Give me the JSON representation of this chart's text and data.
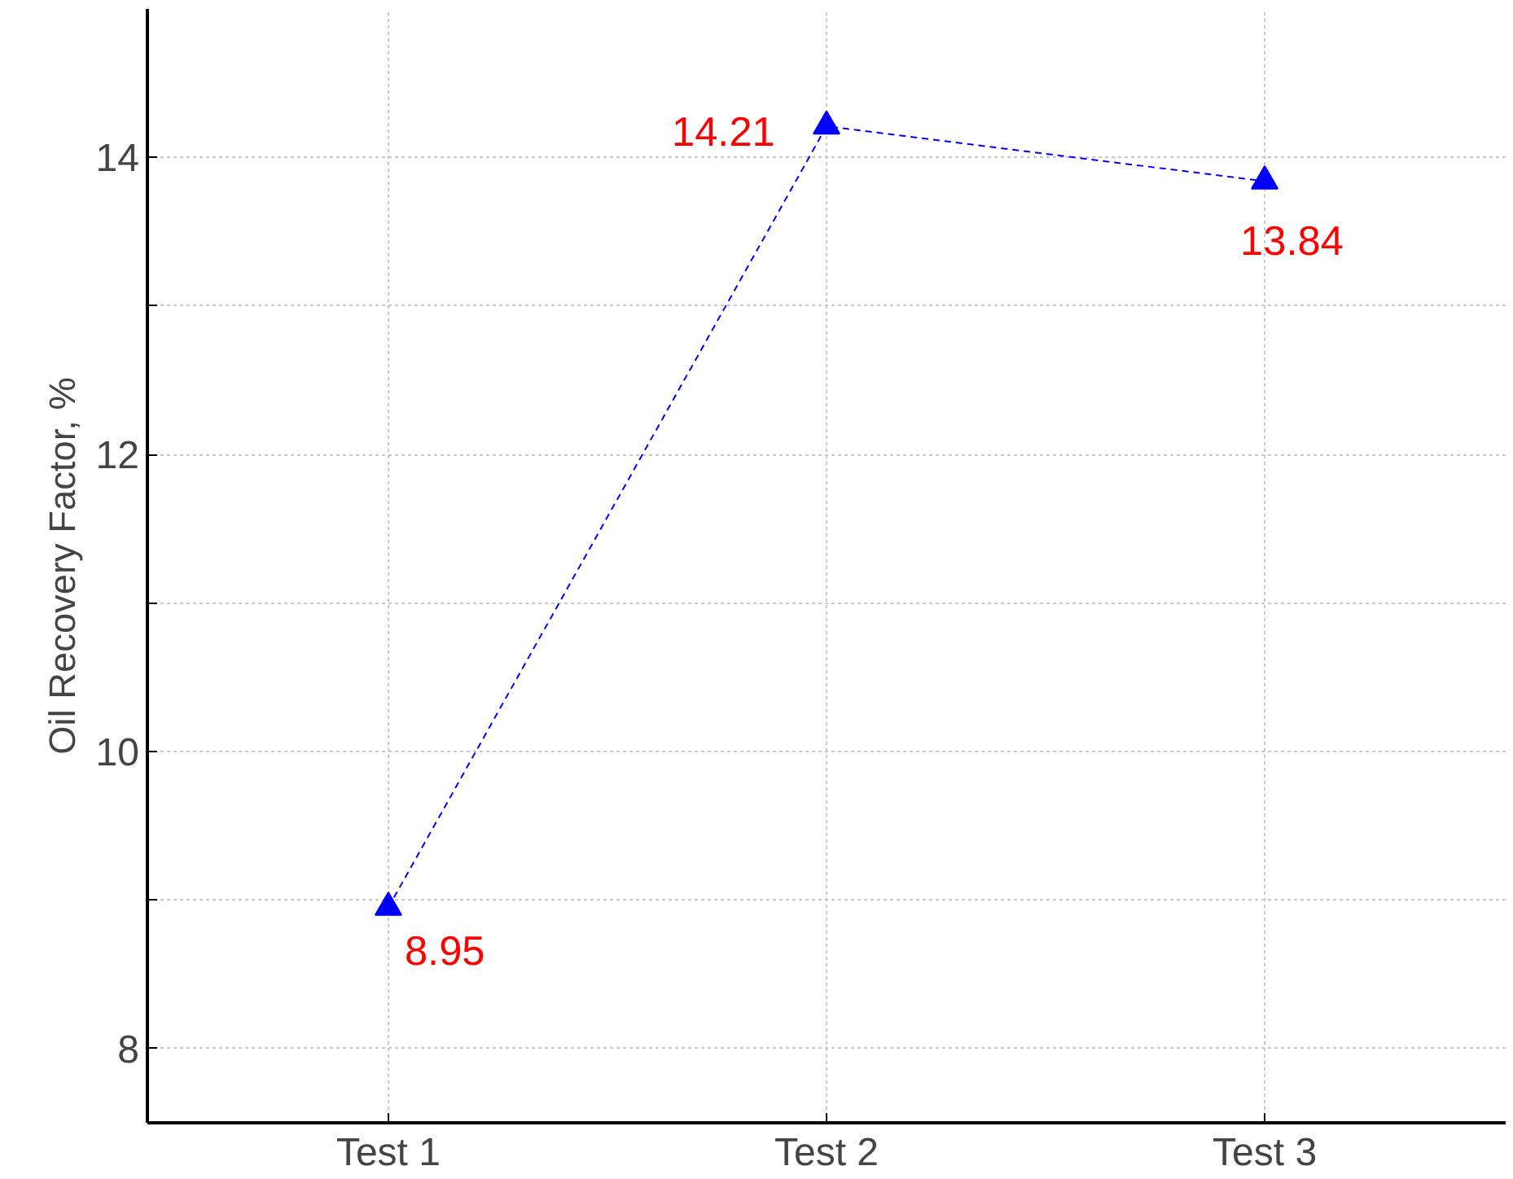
{
  "chart_data": {
    "type": "line",
    "ylabel": "Oil Recovery Factor, %",
    "categories": [
      "Test 1",
      "Test 2",
      "Test 3"
    ],
    "series": [
      {
        "color": "#0000ff",
        "values": [
          8.95,
          14.21,
          13.84
        ]
      }
    ],
    "ylim": [
      7.5,
      15
    ],
    "yticks": [
      8,
      {
        "value": 9,
        "label": null
      },
      10,
      {
        "value": 11,
        "label": null
      },
      12,
      {
        "value": 13,
        "label": null
      },
      14
    ],
    "grid": true,
    "marker": "triangle",
    "line_style": "dashed",
    "data_labels": true
  }
}
